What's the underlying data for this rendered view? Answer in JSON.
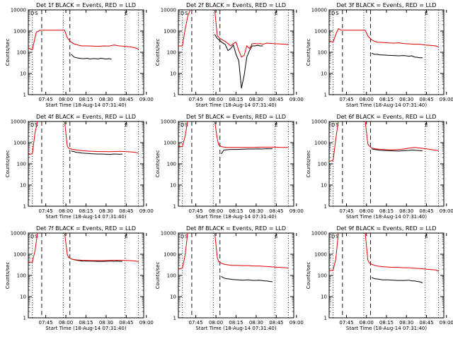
{
  "figure": {
    "xlabel": "Start Time (18-Aug-14 07:31:40)",
    "ylabel": "Counts/sec",
    "xticks": [
      "07:45",
      "08:00",
      "08:15",
      "08:30",
      "08:45",
      "09:00"
    ],
    "yticks": [
      "1",
      "10",
      "100",
      "1000",
      "10000"
    ],
    "panel_marks": [
      "D",
      "S",
      "E"
    ]
  },
  "colors": {
    "events": "#000000",
    "lld": "#e00000"
  },
  "chart_data": [
    {
      "type": "line",
      "title": "Det 1f BLACK = Events, RED = LLD",
      "yscale": "log",
      "ylim": [
        1,
        10000
      ],
      "series": [
        {
          "color": "#000000",
          "x": [
            32,
            34,
            36,
            38,
            40,
            42,
            44,
            46,
            48,
            50,
            52,
            54,
            56,
            58,
            60,
            62
          ],
          "y": [
            80,
            60,
            55,
            52,
            50,
            50,
            52,
            48,
            50,
            50,
            48,
            52,
            50,
            48,
            50,
            47
          ]
        },
        {
          "color": "#e00000",
          "x": [
            0,
            3,
            5,
            6,
            9,
            27,
            29,
            30,
            32,
            34,
            36,
            38,
            40,
            44,
            48,
            52,
            56,
            60,
            64,
            68,
            72,
            76,
            80,
            82
          ],
          "y": [
            160,
            130,
            500,
            900,
            1100,
            1100,
            500,
            400,
            300,
            250,
            230,
            210,
            200,
            200,
            195,
            190,
            200,
            195,
            220,
            200,
            190,
            180,
            160,
            140
          ]
        }
      ]
    },
    {
      "type": "line",
      "title": "Det 2f BLACK = Events, RED = LLD",
      "yscale": "log",
      "ylim": [
        1,
        10000
      ],
      "series": [
        {
          "color": "#000000",
          "x": [
            27,
            29,
            31,
            33,
            35,
            37,
            39,
            41,
            43,
            45,
            47,
            49,
            51,
            53,
            55,
            57,
            59,
            61,
            63
          ],
          "y": [
            700,
            450,
            350,
            280,
            230,
            120,
            150,
            220,
            80,
            40,
            2,
            8,
            60,
            120,
            200,
            200,
            210,
            200,
            200
          ]
        },
        {
          "color": "#e00000",
          "x": [
            0,
            3,
            5,
            7,
            9,
            27,
            29,
            31,
            33,
            35,
            37,
            39,
            41,
            43,
            45,
            47,
            49,
            51,
            53,
            55,
            57,
            59,
            61,
            63,
            66,
            70,
            75,
            80,
            82
          ],
          "y": [
            200,
            200,
            1200,
            5000,
            11000,
            11000,
            600,
            450,
            380,
            320,
            260,
            200,
            260,
            300,
            120,
            60,
            70,
            200,
            150,
            250,
            260,
            250,
            260,
            240,
            270,
            260,
            250,
            240,
            230
          ]
        }
      ]
    },
    {
      "type": "line",
      "title": "Det 3f BLACK = Events, RED = LLD",
      "yscale": "log",
      "ylim": [
        1,
        10000
      ],
      "series": [
        {
          "color": "#000000",
          "x": [
            32,
            34,
            36,
            38,
            40,
            44,
            48,
            52,
            56,
            60,
            62,
            64,
            66,
            68,
            70
          ],
          "y": [
            90,
            80,
            80,
            75,
            75,
            72,
            70,
            68,
            70,
            65,
            68,
            60,
            58,
            55,
            55
          ]
        },
        {
          "color": "#e00000",
          "x": [
            0,
            3,
            5,
            7,
            9,
            27,
            29,
            30,
            32,
            34,
            36,
            40,
            44,
            48,
            52,
            56,
            60,
            64,
            68,
            72,
            76,
            80,
            82
          ],
          "y": [
            350,
            300,
            700,
            1300,
            1100,
            1100,
            600,
            500,
            380,
            330,
            300,
            290,
            280,
            270,
            280,
            260,
            250,
            240,
            240,
            220,
            210,
            200,
            180
          ]
        }
      ]
    },
    {
      "type": "line",
      "title": "Det 4f BLACK = Events, RED = LLD",
      "yscale": "log",
      "ylim": [
        1,
        10000
      ],
      "series": [
        {
          "color": "#000000",
          "x": [
            32,
            34,
            36,
            38,
            40,
            44,
            48,
            52,
            56,
            60,
            62,
            64,
            66,
            68,
            70
          ],
          "y": [
            400,
            380,
            350,
            340,
            320,
            310,
            300,
            290,
            290,
            280,
            285,
            290,
            290,
            285,
            290
          ]
        },
        {
          "color": "#e00000",
          "x": [
            0,
            3,
            5,
            7,
            9,
            27,
            29,
            30,
            32,
            34,
            36,
            40,
            44,
            48,
            52,
            56,
            60,
            64,
            68,
            72,
            76,
            80,
            82
          ],
          "y": [
            280,
            300,
            3000,
            11000,
            11000,
            11000,
            700,
            550,
            500,
            470,
            450,
            420,
            400,
            390,
            380,
            380,
            375,
            380,
            390,
            380,
            370,
            350,
            320
          ]
        }
      ]
    },
    {
      "type": "line",
      "title": "Det 5f BLACK = Events, RED = LLD",
      "yscale": "log",
      "ylim": [
        1,
        10000
      ],
      "series": [
        {
          "color": "#000000",
          "x": [
            32,
            34,
            36,
            38,
            40,
            44,
            48,
            52,
            56,
            60,
            62,
            64,
            66,
            68,
            70
          ],
          "y": [
            300,
            450,
            460,
            470,
            480,
            480,
            490,
            500,
            500,
            510,
            500,
            510,
            520,
            510,
            520
          ]
        },
        {
          "color": "#e00000",
          "x": [
            0,
            3,
            5,
            7,
            9,
            27,
            29,
            30,
            32,
            34,
            36,
            40,
            44,
            48,
            52,
            56,
            60,
            64,
            68,
            72,
            76,
            80,
            82
          ],
          "y": [
            650,
            650,
            2000,
            11000,
            11000,
            11000,
            1500,
            800,
            650,
            620,
            600,
            600,
            600,
            600,
            600,
            600,
            610,
            610,
            610,
            620,
            600,
            600,
            600
          ]
        }
      ]
    },
    {
      "type": "line",
      "title": "Det 6f BLACK = Events, RED = LLD",
      "yscale": "log",
      "ylim": [
        1,
        10000
      ],
      "series": [
        {
          "color": "#000000",
          "x": [
            32,
            34,
            36,
            38,
            40,
            44,
            48,
            52,
            56,
            60,
            62,
            64,
            66,
            68,
            70
          ],
          "y": [
            500,
            480,
            460,
            440,
            430,
            420,
            410,
            400,
            420,
            430,
            450,
            440,
            430,
            420,
            410
          ]
        },
        {
          "color": "#e00000",
          "x": [
            0,
            3,
            5,
            7,
            9,
            27,
            29,
            30,
            32,
            34,
            36,
            40,
            44,
            48,
            52,
            56,
            60,
            64,
            68,
            72,
            76,
            80,
            82
          ],
          "y": [
            130,
            150,
            1500,
            11000,
            11000,
            11000,
            900,
            700,
            560,
            520,
            500,
            480,
            460,
            460,
            470,
            500,
            550,
            600,
            560,
            520,
            480,
            440,
            420
          ]
        }
      ]
    },
    {
      "type": "line",
      "title": "Det 7f BLACK = Events, RED = LLD",
      "yscale": "log",
      "ylim": [
        1,
        10000
      ],
      "series": [
        {
          "color": "#000000",
          "x": [
            32,
            34,
            36,
            38,
            40,
            44,
            48,
            52,
            56,
            60,
            62,
            64,
            66,
            68,
            70
          ],
          "y": [
            600,
            560,
            520,
            500,
            480,
            470,
            470,
            460,
            460,
            470,
            470,
            460,
            470,
            460,
            460
          ]
        },
        {
          "color": "#e00000",
          "x": [
            0,
            3,
            5,
            7,
            9,
            27,
            29,
            30,
            32,
            34,
            36,
            40,
            44,
            48,
            52,
            56,
            60,
            64,
            68,
            72,
            76,
            80,
            82
          ],
          "y": [
            420,
            420,
            1500,
            11000,
            11000,
            11000,
            1000,
            700,
            600,
            560,
            540,
            520,
            510,
            500,
            500,
            500,
            510,
            520,
            520,
            510,
            500,
            480,
            450
          ]
        }
      ]
    },
    {
      "type": "line",
      "title": "Det 8f BLACK = Events, RED = LLD",
      "yscale": "log",
      "ylim": [
        1,
        10000
      ],
      "series": [
        {
          "color": "#000000",
          "x": [
            32,
            34,
            36,
            38,
            40,
            44,
            48,
            52,
            56,
            60,
            62,
            64,
            66,
            68,
            70
          ],
          "y": [
            90,
            75,
            70,
            68,
            65,
            62,
            60,
            62,
            58,
            60,
            58,
            55,
            55,
            52,
            50
          ]
        },
        {
          "color": "#e00000",
          "x": [
            0,
            3,
            5,
            7,
            9,
            27,
            29,
            30,
            32,
            34,
            36,
            40,
            44,
            48,
            52,
            56,
            60,
            64,
            68,
            72,
            76,
            80,
            82
          ],
          "y": [
            200,
            220,
            900,
            11000,
            11000,
            11000,
            700,
            450,
            380,
            340,
            320,
            300,
            300,
            290,
            290,
            280,
            280,
            270,
            260,
            250,
            240,
            230,
            220
          ]
        }
      ]
    },
    {
      "type": "line",
      "title": "Det 9f BLACK = Events, RED = LLD",
      "yscale": "log",
      "ylim": [
        1,
        10000
      ],
      "series": [
        {
          "color": "#000000",
          "x": [
            32,
            34,
            36,
            38,
            40,
            44,
            48,
            52,
            56,
            60,
            62,
            64,
            66,
            68,
            70
          ],
          "y": [
            80,
            70,
            68,
            65,
            62,
            62,
            60,
            58,
            58,
            60,
            55,
            55,
            52,
            50,
            45
          ]
        },
        {
          "color": "#e00000",
          "x": [
            0,
            3,
            5,
            7,
            9,
            27,
            29,
            30,
            32,
            34,
            36,
            40,
            44,
            48,
            52,
            56,
            60,
            64,
            68,
            72,
            76,
            80,
            82
          ],
          "y": [
            160,
            180,
            600,
            11000,
            11000,
            11000,
            550,
            400,
            330,
            300,
            280,
            260,
            250,
            240,
            240,
            230,
            230,
            220,
            210,
            200,
            190,
            180,
            160
          ]
        }
      ]
    }
  ]
}
